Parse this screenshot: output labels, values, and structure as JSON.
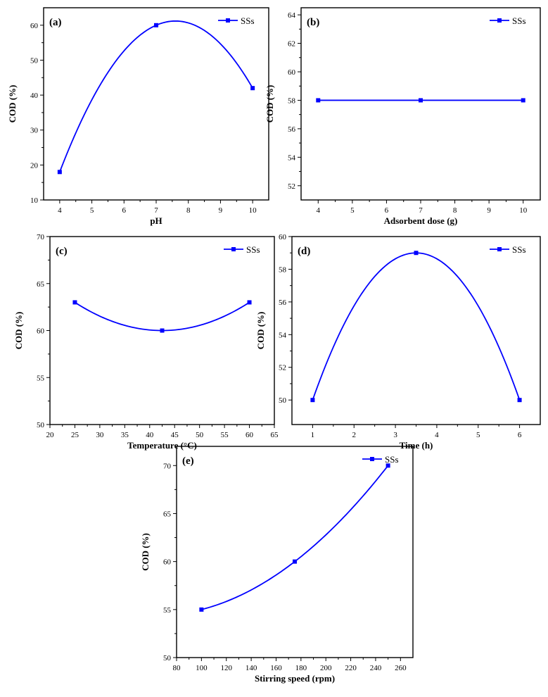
{
  "figure": {
    "legend_position": "top-right",
    "series_color": "#0000ff",
    "marker": "square",
    "line_style": "smooth"
  },
  "chart_data": [
    {
      "type": "line",
      "panel_label": "(a)",
      "xlabel": "pH",
      "ylabel": "COD (%)",
      "xlim": [
        3.5,
        10.5
      ],
      "ylim": [
        10,
        65
      ],
      "xticks": [
        4,
        5,
        6,
        7,
        8,
        9,
        10
      ],
      "yticks": [
        10,
        20,
        30,
        40,
        50,
        60
      ],
      "series": [
        {
          "name": "SSs",
          "x": [
            4,
            7,
            10
          ],
          "y": [
            18,
            60,
            42
          ]
        }
      ],
      "legend": "top-right",
      "grid": false
    },
    {
      "type": "line",
      "panel_label": "(b)",
      "xlabel": "Adsorbent dose (g)",
      "ylabel": "COD (%)",
      "xlim": [
        3.5,
        10.5
      ],
      "ylim": [
        51,
        64.5
      ],
      "xticks": [
        4,
        5,
        6,
        7,
        8,
        9,
        10
      ],
      "yticks": [
        52,
        54,
        56,
        58,
        60,
        62,
        64
      ],
      "series": [
        {
          "name": "SSs",
          "x": [
            4,
            7,
            10
          ],
          "y": [
            58,
            58,
            58
          ]
        }
      ],
      "legend": "top-right",
      "grid": false
    },
    {
      "type": "line",
      "panel_label": "(c)",
      "xlabel": "Temperature (°C)",
      "ylabel": "COD (%)",
      "xlim": [
        20,
        65
      ],
      "ylim": [
        50,
        70
      ],
      "xticks": [
        20,
        25,
        30,
        35,
        40,
        45,
        50,
        55,
        60,
        65
      ],
      "yticks": [
        50,
        55,
        60,
        65,
        70
      ],
      "series": [
        {
          "name": "SSs",
          "x": [
            25,
            42.5,
            60
          ],
          "y": [
            63,
            60,
            63
          ]
        }
      ],
      "legend": "top-right",
      "grid": false
    },
    {
      "type": "line",
      "panel_label": "(d)",
      "xlabel": "Time (h)",
      "ylabel": "COD (%)",
      "xlim": [
        0.5,
        6.5
      ],
      "ylim": [
        48.5,
        60
      ],
      "xticks": [
        1,
        2,
        3,
        4,
        5,
        6
      ],
      "yticks": [
        50,
        52,
        54,
        56,
        58,
        60
      ],
      "series": [
        {
          "name": "SSs",
          "x": [
            1,
            3.5,
            6
          ],
          "y": [
            50,
            59,
            50
          ]
        }
      ],
      "legend": "top-right",
      "grid": false
    },
    {
      "type": "line",
      "panel_label": "(e)",
      "xlabel": "Stirring speed (rpm)",
      "ylabel": "COD (%)",
      "xlim": [
        80,
        270
      ],
      "ylim": [
        50,
        72
      ],
      "xticks": [
        80,
        100,
        120,
        140,
        160,
        180,
        200,
        220,
        240,
        260
      ],
      "yticks": [
        50,
        55,
        60,
        65,
        70
      ],
      "series": [
        {
          "name": "SSs",
          "x": [
            100,
            175,
            250
          ],
          "y": [
            55,
            60,
            70
          ]
        }
      ],
      "legend": "top-right",
      "grid": false
    }
  ]
}
